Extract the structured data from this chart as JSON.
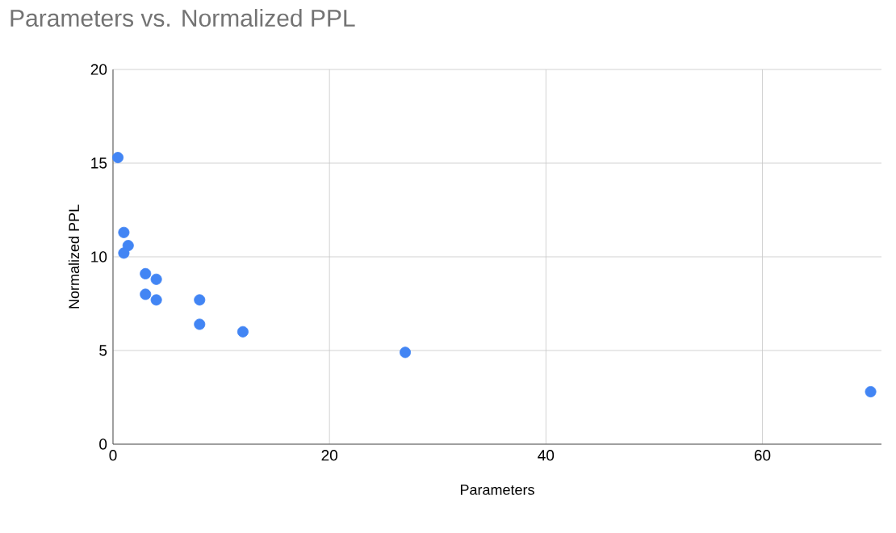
{
  "chart_data": {
    "type": "scatter",
    "title": "Parameters vs. Normalized PPL",
    "xlabel": "Parameters",
    "ylabel": "Normalized PPL",
    "x": [
      0.45,
      1,
      1.4,
      1,
      3,
      4,
      3,
      4,
      8,
      8,
      12,
      27,
      70
    ],
    "series": [
      {
        "color": "#4285f4",
        "values": [
          15.3,
          11.3,
          10.6,
          10.2,
          9.1,
          8.8,
          8.0,
          7.7,
          7.7,
          6.4,
          6.0,
          4.9,
          2.8
        ]
      }
    ],
    "xlim": [
      0,
      71
    ],
    "ylim": [
      0,
      20
    ],
    "xticks": [
      0,
      20,
      40,
      60
    ],
    "yticks": [
      0,
      5,
      10,
      15,
      20
    ],
    "grid": true
  }
}
